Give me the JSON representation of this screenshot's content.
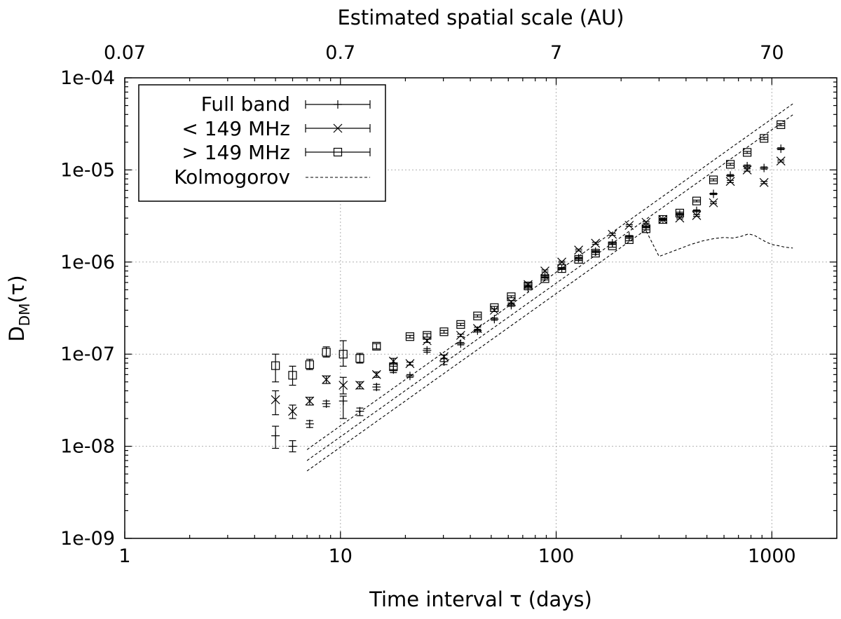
{
  "chart_data": {
    "type": "scatter",
    "title": "",
    "xlabel": "Time interval τ (days)",
    "ylabel_main": "D",
    "ylabel_sub": "DM",
    "ylabel_tail": "(τ)",
    "x2label": "Estimated spatial scale (AU)",
    "xscale": "log",
    "yscale": "log",
    "xlim": [
      1,
      2000
    ],
    "ylim": [
      1e-09,
      0.0001
    ],
    "grid": true,
    "legend_position": "top-left",
    "x_ticks": [
      {
        "value": 1,
        "label": "1"
      },
      {
        "value": 10,
        "label": "10"
      },
      {
        "value": 100,
        "label": "100"
      },
      {
        "value": 1000,
        "label": "1000"
      }
    ],
    "y_ticks": [
      {
        "value": 1e-09,
        "label": "1e-09"
      },
      {
        "value": 1e-08,
        "label": "1e-08"
      },
      {
        "value": 1e-07,
        "label": "1e-07"
      },
      {
        "value": 1e-06,
        "label": "1e-06"
      },
      {
        "value": 1e-05,
        "label": "1e-05"
      },
      {
        "value": 0.0001,
        "label": "1e-04"
      }
    ],
    "x2_ticks": [
      {
        "value": 1,
        "label": "0.07"
      },
      {
        "value": 10,
        "label": "0.7"
      },
      {
        "value": 100,
        "label": "7"
      },
      {
        "value": 1000,
        "label": "70"
      }
    ],
    "series": [
      {
        "name": "Full band",
        "marker": "plus",
        "points": [
          {
            "x": 5.0,
            "y": 1.3e-08,
            "lo": 9.5e-09,
            "hi": 1.65e-08
          },
          {
            "x": 6.0,
            "y": 1e-08,
            "lo": 8.7e-09,
            "hi": 1.15e-08
          },
          {
            "x": 7.2,
            "y": 1.75e-08,
            "lo": 1.6e-08,
            "hi": 1.9e-08
          },
          {
            "x": 8.6,
            "y": 2.9e-08,
            "lo": 2.7e-08,
            "hi": 3.1e-08
          },
          {
            "x": 10.3,
            "y": 3.1e-08,
            "lo": 2e-08,
            "hi": 3.5e-08
          },
          {
            "x": 12.3,
            "y": 2.4e-08,
            "lo": 2.15e-08,
            "hi": 2.6e-08
          },
          {
            "x": 14.7,
            "y": 4.4e-08,
            "lo": 4.1e-08,
            "hi": 4.7e-08
          },
          {
            "x": 17.6,
            "y": 6.8e-08,
            "lo": 6.3e-08,
            "hi": 7.4e-08
          },
          {
            "x": 21.0,
            "y": 5.8e-08,
            "lo": 5.6e-08,
            "hi": 6e-08
          },
          {
            "x": 25.2,
            "y": 1.1e-07,
            "lo": 1.05e-07,
            "hi": 1.15e-07
          },
          {
            "x": 30.2,
            "y": 8.3e-08,
            "lo": 7.7e-08,
            "hi": 8.9e-08
          },
          {
            "x": 36.1,
            "y": 1.3e-07,
            "lo": 1.26e-07,
            "hi": 1.34e-07
          },
          {
            "x": 43.2,
            "y": 1.8e-07,
            "lo": 1.74e-07,
            "hi": 1.86e-07
          },
          {
            "x": 51.7,
            "y": 2.4e-07,
            "lo": 2.33e-07,
            "hi": 2.47e-07
          },
          {
            "x": 61.9,
            "y": 3.4e-07,
            "lo": 3.3e-07,
            "hi": 3.5e-07
          },
          {
            "x": 74.1,
            "y": 5.2e-07,
            "lo": 5e-07,
            "hi": 5.4e-07
          },
          {
            "x": 88.7,
            "y": 6.9e-07,
            "lo": 6.7e-07,
            "hi": 7.1e-07
          },
          {
            "x": 106.2,
            "y": 8.5e-07,
            "lo": 8.3e-07,
            "hi": 8.7e-07
          },
          {
            "x": 127.1,
            "y": 1.1e-06,
            "lo": 1.07e-06,
            "hi": 1.13e-06
          },
          {
            "x": 152.2,
            "y": 1.3e-06,
            "lo": 1.27e-06,
            "hi": 1.33e-06
          },
          {
            "x": 182.2,
            "y": 1.6e-06,
            "lo": 1.56e-06,
            "hi": 1.64e-06
          },
          {
            "x": 218.1,
            "y": 1.9e-06,
            "lo": 1.86e-06,
            "hi": 1.94e-06
          },
          {
            "x": 261.1,
            "y": 2.4e-06,
            "lo": 2.35e-06,
            "hi": 2.45e-06
          },
          {
            "x": 312.5,
            "y": 2.9e-06,
            "lo": 2.84e-06,
            "hi": 2.96e-06
          },
          {
            "x": 374.1,
            "y": 3.3e-06,
            "lo": 3.23e-06,
            "hi": 3.37e-06
          },
          {
            "x": 447.9,
            "y": 3.6e-06,
            "lo": 3.52e-06,
            "hi": 3.68e-06
          },
          {
            "x": 536.2,
            "y": 5.5e-06,
            "lo": 5.4e-06,
            "hi": 5.6e-06
          },
          {
            "x": 641.9,
            "y": 8.7e-06,
            "lo": 8.5e-06,
            "hi": 8.9e-06
          },
          {
            "x": 768.4,
            "y": 1.1e-05,
            "lo": 1.07e-05,
            "hi": 1.13e-05
          },
          {
            "x": 919.9,
            "y": 1.05e-05,
            "lo": 1.02e-05,
            "hi": 1.08e-05
          },
          {
            "x": 1101.0,
            "y": 1.7e-05,
            "lo": 1.66e-05,
            "hi": 1.74e-05
          }
        ]
      },
      {
        "name": "< 149 MHz",
        "marker": "cross",
        "points": [
          {
            "x": 5.0,
            "y": 3.2e-08,
            "lo": 2.2e-08,
            "hi": 4e-08
          },
          {
            "x": 6.0,
            "y": 2.4e-08,
            "lo": 2e-08,
            "hi": 2.8e-08
          },
          {
            "x": 7.2,
            "y": 3.1e-08,
            "lo": 2.8e-08,
            "hi": 3.4e-08
          },
          {
            "x": 8.6,
            "y": 5.3e-08,
            "lo": 4.8e-08,
            "hi": 5.8e-08
          },
          {
            "x": 10.3,
            "y": 4.6e-08,
            "lo": 3.7e-08,
            "hi": 5.6e-08
          },
          {
            "x": 12.3,
            "y": 4.6e-08,
            "lo": 4.2e-08,
            "hi": 5e-08
          },
          {
            "x": 14.7,
            "y": 6e-08,
            "lo": 5.6e-08,
            "hi": 6.4e-08
          },
          {
            "x": 17.6,
            "y": 8.4e-08,
            "lo": 7.8e-08,
            "hi": 9e-08
          },
          {
            "x": 21.0,
            "y": 7.9e-08,
            "lo": 7.6e-08,
            "hi": 8.2e-08
          },
          {
            "x": 25.2,
            "y": 1.4e-07,
            "lo": 1.34e-07,
            "hi": 1.46e-07
          },
          {
            "x": 30.2,
            "y": 9.4e-08,
            "lo": 9e-08,
            "hi": 9.8e-08
          },
          {
            "x": 36.1,
            "y": 1.6e-07,
            "lo": 1.55e-07,
            "hi": 1.65e-07
          },
          {
            "x": 43.2,
            "y": 1.9e-07,
            "lo": 1.84e-07,
            "hi": 1.96e-07
          },
          {
            "x": 51.7,
            "y": 3e-07,
            "lo": 2.9e-07,
            "hi": 3.1e-07
          },
          {
            "x": 61.9,
            "y": 3.7e-07,
            "lo": 3.6e-07,
            "hi": 3.8e-07
          },
          {
            "x": 74.1,
            "y": 5.7e-07,
            "lo": 5.5e-07,
            "hi": 5.9e-07
          },
          {
            "x": 88.7,
            "y": 8e-07,
            "lo": 7.8e-07,
            "hi": 8.2e-07
          },
          {
            "x": 106.2,
            "y": 1e-06,
            "lo": 9.8e-07,
            "hi": 1.02e-06
          },
          {
            "x": 127.1,
            "y": 1.35e-06,
            "lo": 1.32e-06,
            "hi": 1.38e-06
          },
          {
            "x": 152.2,
            "y": 1.6e-06,
            "lo": 1.56e-06,
            "hi": 1.64e-06
          },
          {
            "x": 182.2,
            "y": 2e-06,
            "lo": 1.95e-06,
            "hi": 2.05e-06
          },
          {
            "x": 218.1,
            "y": 2.5e-06,
            "lo": 2.45e-06,
            "hi": 2.55e-06
          },
          {
            "x": 261.1,
            "y": 2.7e-06,
            "lo": 2.64e-06,
            "hi": 2.76e-06
          },
          {
            "x": 312.5,
            "y": 2.9e-06,
            "lo": 2.84e-06,
            "hi": 2.96e-06
          },
          {
            "x": 374.1,
            "y": 3e-06,
            "lo": 2.94e-06,
            "hi": 3.06e-06
          },
          {
            "x": 447.9,
            "y": 3.2e-06,
            "lo": 3.13e-06,
            "hi": 3.27e-06
          },
          {
            "x": 536.2,
            "y": 4.4e-06,
            "lo": 4.3e-06,
            "hi": 4.5e-06
          },
          {
            "x": 641.9,
            "y": 7.5e-06,
            "lo": 7.3e-06,
            "hi": 7.7e-06
          },
          {
            "x": 768.4,
            "y": 1e-05,
            "lo": 9.7e-06,
            "hi": 1.03e-05
          },
          {
            "x": 919.9,
            "y": 7.3e-06,
            "lo": 7.1e-06,
            "hi": 7.5e-06
          },
          {
            "x": 1101.0,
            "y": 1.25e-05,
            "lo": 1.22e-05,
            "hi": 1.28e-05
          }
        ]
      },
      {
        "name": "> 149 MHz",
        "marker": "square",
        "points": [
          {
            "x": 5.0,
            "y": 7.5e-08,
            "lo": 5e-08,
            "hi": 1e-07
          },
          {
            "x": 6.0,
            "y": 5.9e-08,
            "lo": 4.6e-08,
            "hi": 7.4e-08
          },
          {
            "x": 7.2,
            "y": 7.7e-08,
            "lo": 6.8e-08,
            "hi": 8.8e-08
          },
          {
            "x": 8.6,
            "y": 1.05e-07,
            "lo": 9.3e-08,
            "hi": 1.2e-07
          },
          {
            "x": 10.3,
            "y": 1e-07,
            "lo": 7.4e-08,
            "hi": 1.4e-07
          },
          {
            "x": 12.3,
            "y": 9e-08,
            "lo": 8e-08,
            "hi": 1.02e-07
          },
          {
            "x": 14.7,
            "y": 1.22e-07,
            "lo": 1.14e-07,
            "hi": 1.3e-07
          },
          {
            "x": 17.6,
            "y": 7.3e-08,
            "lo": 6.6e-08,
            "hi": 8e-08
          },
          {
            "x": 21.0,
            "y": 1.55e-07,
            "lo": 1.5e-07,
            "hi": 1.6e-07
          },
          {
            "x": 25.2,
            "y": 1.6e-07,
            "lo": 1.53e-07,
            "hi": 1.67e-07
          },
          {
            "x": 30.2,
            "y": 1.75e-07,
            "lo": 1.69e-07,
            "hi": 1.81e-07
          },
          {
            "x": 36.1,
            "y": 2.1e-07,
            "lo": 2.04e-07,
            "hi": 2.16e-07
          },
          {
            "x": 43.2,
            "y": 2.6e-07,
            "lo": 2.53e-07,
            "hi": 2.67e-07
          },
          {
            "x": 51.7,
            "y": 3.2e-07,
            "lo": 3.1e-07,
            "hi": 3.3e-07
          },
          {
            "x": 61.9,
            "y": 4.2e-07,
            "lo": 4.1e-07,
            "hi": 4.3e-07
          },
          {
            "x": 74.1,
            "y": 5.5e-07,
            "lo": 5.35e-07,
            "hi": 5.65e-07
          },
          {
            "x": 88.7,
            "y": 6.6e-07,
            "lo": 6.4e-07,
            "hi": 6.8e-07
          },
          {
            "x": 106.2,
            "y": 8.5e-07,
            "lo": 8.3e-07,
            "hi": 8.7e-07
          },
          {
            "x": 127.1,
            "y": 1.07e-06,
            "lo": 1.04e-06,
            "hi": 1.1e-06
          },
          {
            "x": 152.2,
            "y": 1.25e-06,
            "lo": 1.21e-06,
            "hi": 1.29e-06
          },
          {
            "x": 182.2,
            "y": 1.5e-06,
            "lo": 1.45e-06,
            "hi": 1.55e-06
          },
          {
            "x": 218.1,
            "y": 1.75e-06,
            "lo": 1.7e-06,
            "hi": 1.8e-06
          },
          {
            "x": 261.1,
            "y": 2.3e-06,
            "lo": 2.24e-06,
            "hi": 2.36e-06
          },
          {
            "x": 312.5,
            "y": 2.9e-06,
            "lo": 2.83e-06,
            "hi": 2.97e-06
          },
          {
            "x": 374.1,
            "y": 3.4e-06,
            "lo": 3.32e-06,
            "hi": 3.48e-06
          },
          {
            "x": 447.9,
            "y": 4.6e-06,
            "lo": 4.5e-06,
            "hi": 4.7e-06
          },
          {
            "x": 536.2,
            "y": 7.8e-06,
            "lo": 7.6e-06,
            "hi": 8e-06
          },
          {
            "x": 641.9,
            "y": 1.15e-05,
            "lo": 1.12e-05,
            "hi": 1.18e-05
          },
          {
            "x": 768.4,
            "y": 1.55e-05,
            "lo": 1.51e-05,
            "hi": 1.59e-05
          },
          {
            "x": 919.9,
            "y": 2.2e-05,
            "lo": 2.14e-05,
            "hi": 2.26e-05
          },
          {
            "x": 1101.0,
            "y": 3.1e-05,
            "lo": 3.02e-05,
            "hi": 3.18e-05
          }
        ]
      }
    ],
    "kolmogorov": {
      "name": "Kolmogorov",
      "slope": 1.6667,
      "x_start": 7.0,
      "x_end": 1250.0,
      "lines": [
        {
          "y_at_start": 9.2e-09
        },
        {
          "y_at_start": 7e-09
        },
        {
          "y_at_start": 5.4e-09,
          "flatten_from_x": 260.0,
          "flat_values": [
            {
              "x": 300,
              "y": 1.15e-06
            },
            {
              "x": 360,
              "y": 1.35e-06
            },
            {
              "x": 420,
              "y": 1.55e-06
            },
            {
              "x": 480,
              "y": 1.7e-06
            },
            {
              "x": 540,
              "y": 1.8e-06
            },
            {
              "x": 600,
              "y": 1.85e-06
            },
            {
              "x": 660,
              "y": 1.82e-06
            },
            {
              "x": 720,
              "y": 1.9e-06
            },
            {
              "x": 780,
              "y": 2.02e-06
            },
            {
              "x": 830,
              "y": 1.95e-06
            },
            {
              "x": 880,
              "y": 1.8e-06
            },
            {
              "x": 940,
              "y": 1.65e-06
            },
            {
              "x": 1000,
              "y": 1.55e-06
            },
            {
              "x": 1080,
              "y": 1.5e-06
            },
            {
              "x": 1150,
              "y": 1.45e-06
            },
            {
              "x": 1250,
              "y": 1.42e-06
            }
          ]
        }
      ]
    }
  }
}
